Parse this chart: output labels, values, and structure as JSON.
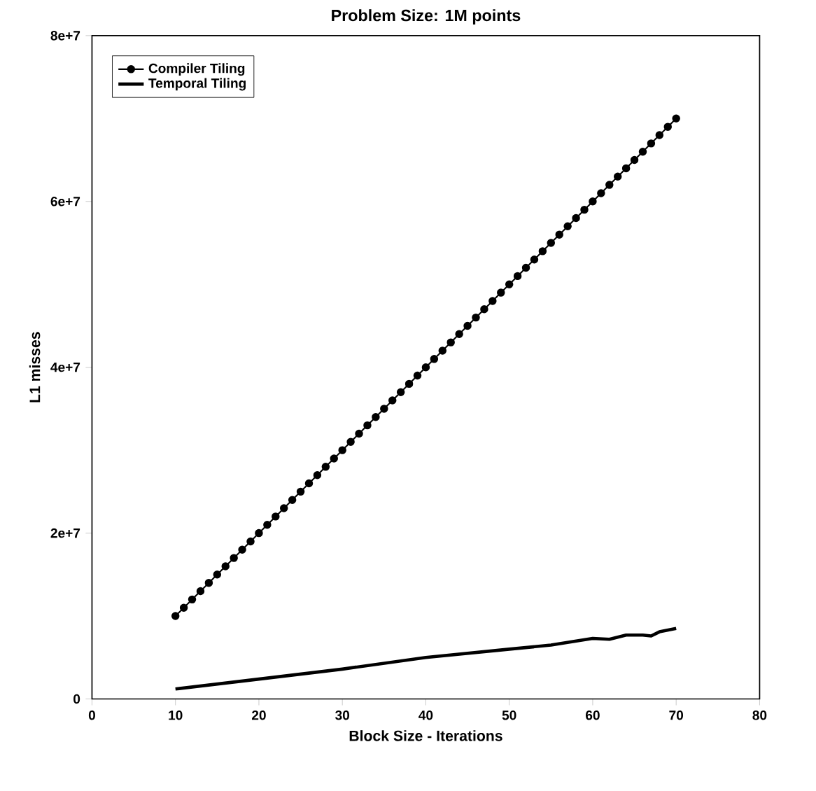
{
  "chart_data": {
    "type": "line",
    "title": "Problem Size: 1M points",
    "xlabel": "Block Size - Iterations",
    "ylabel": "L1 misses",
    "xlim": [
      0,
      80
    ],
    "xticks": [
      0,
      10,
      20,
      30,
      40,
      50,
      60,
      70,
      80
    ],
    "ylim": [
      0,
      80000000
    ],
    "yticks": [
      {
        "value": 0,
        "label": "0"
      },
      {
        "value": 20000000,
        "label": "2e+7"
      },
      {
        "value": 40000000,
        "label": "4e+7"
      },
      {
        "value": 60000000,
        "label": "6e+7"
      },
      {
        "value": 80000000,
        "label": "8e+7"
      }
    ],
    "legend": "top left",
    "grid": false,
    "line_style": "solid",
    "series": [
      {
        "name": "Compiler Tiling",
        "color": "#000000",
        "marker": "circle",
        "x": [
          10,
          11,
          12,
          13,
          14,
          15,
          16,
          17,
          18,
          19,
          20,
          21,
          22,
          23,
          24,
          25,
          26,
          27,
          28,
          29,
          30,
          31,
          32,
          33,
          34,
          35,
          36,
          37,
          38,
          39,
          40,
          41,
          42,
          43,
          44,
          45,
          46,
          47,
          48,
          49,
          50,
          51,
          52,
          53,
          54,
          55,
          56,
          57,
          58,
          59,
          60,
          61,
          62,
          63,
          64,
          65,
          66,
          67,
          68,
          69,
          70
        ],
        "values": [
          10000000,
          11000000,
          12000000,
          13000000,
          14000000,
          15000000,
          16000000,
          17000000,
          18000000,
          19000000,
          20000000,
          21000000,
          22000000,
          23000000,
          24000000,
          25000000,
          26000000,
          27000000,
          28000000,
          29000000,
          30000000,
          31000000,
          32000000,
          33000000,
          34000000,
          35000000,
          36000000,
          37000000,
          38000000,
          39000000,
          40000000,
          41000000,
          42000000,
          43000000,
          44000000,
          45000000,
          46000000,
          47000000,
          48000000,
          49000000,
          50000000,
          51000000,
          52000000,
          53000000,
          54000000,
          55000000,
          56000000,
          57000000,
          58000000,
          59000000,
          60000000,
          61000000,
          62000000,
          63000000,
          64000000,
          65000000,
          66000000,
          67000000,
          68000000,
          69000000,
          70000000
        ]
      },
      {
        "name": "Temporal Tiling",
        "color": "#000000",
        "marker": "none",
        "x": [
          10,
          20,
          30,
          40,
          50,
          55,
          60,
          62,
          64,
          66,
          67,
          68,
          70
        ],
        "values": [
          1200000,
          2400000,
          3600000,
          5000000,
          6000000,
          6500000,
          7300000,
          7200000,
          7700000,
          7700000,
          7600000,
          8100000,
          8500000
        ]
      }
    ]
  }
}
